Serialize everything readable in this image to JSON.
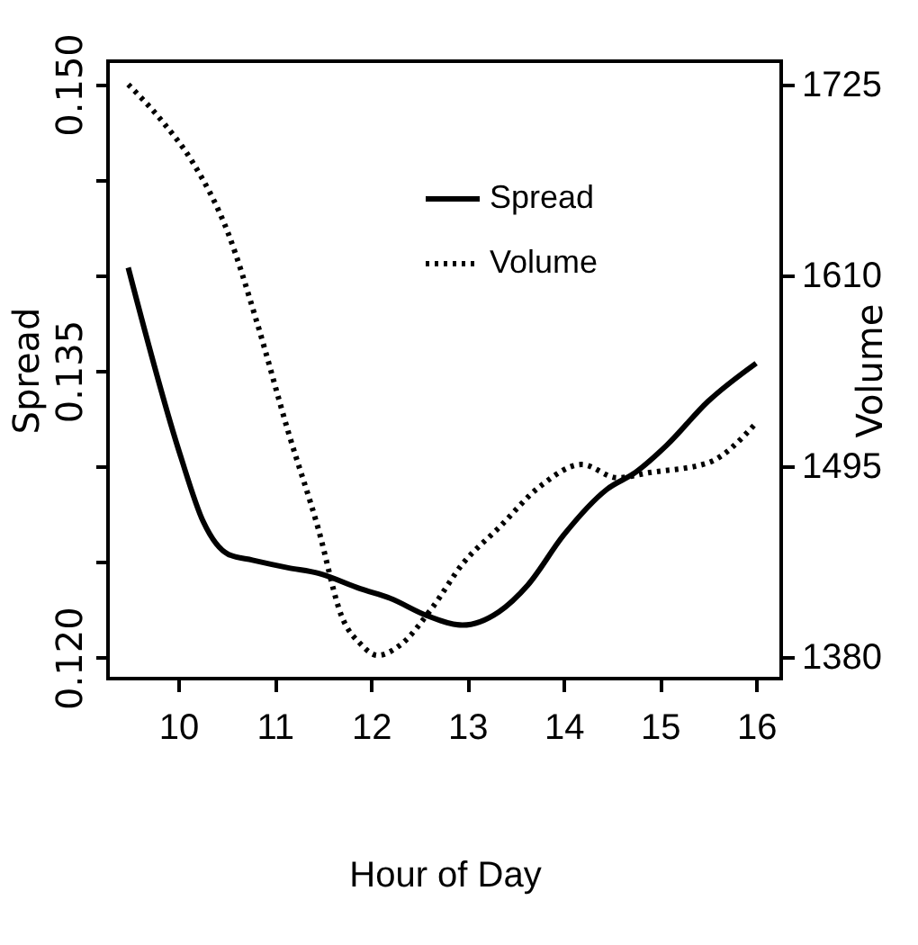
{
  "chart_data": {
    "type": "line",
    "xlabel": "Hour of Day",
    "ylabel": "Spread",
    "y2label": "Volume",
    "xlim": [
      9.27,
      16.26
    ],
    "xticks": [
      10,
      11,
      12,
      13,
      14,
      15,
      16
    ],
    "ylim": [
      0.1189,
      0.1512
    ],
    "yticks": [
      {
        "value": 0.12,
        "label": "0.120"
      },
      {
        "value": 0.125,
        "label": null
      },
      {
        "value": 0.13,
        "label": null
      },
      {
        "value": 0.135,
        "label": "0.135"
      },
      {
        "value": 0.14,
        "label": null
      },
      {
        "value": 0.145,
        "label": null
      },
      {
        "value": 0.15,
        "label": "0.150"
      }
    ],
    "y2lim": [
      1367,
      1739
    ],
    "y2ticks": [
      1380,
      1495,
      1610,
      1725
    ],
    "grid": false,
    "legend": "top right",
    "series": [
      {
        "name": "Spread",
        "color": "#000000",
        "line_style": "solid",
        "x": [
          9.48,
          10.02,
          10.26,
          10.52,
          10.77,
          11.14,
          11.46,
          11.89,
          12.2,
          12.58,
          12.95,
          13.33,
          13.63,
          14.0,
          14.45,
          14.75,
          15.07,
          15.5,
          16.0
        ],
        "values": [
          0.1404,
          0.1306,
          0.1271,
          0.1254,
          0.1251,
          0.1247,
          0.1244,
          0.1236,
          0.1231,
          0.1222,
          0.1217,
          0.1224,
          0.1238,
          0.1264,
          0.1288,
          0.1297,
          0.1311,
          0.1334,
          0.1354
        ]
      },
      {
        "name": "Volume",
        "color": "#000000",
        "line_style": "dotted",
        "axis": "y2",
        "x": [
          9.48,
          9.83,
          10.15,
          10.52,
          10.82,
          11.14,
          11.45,
          11.7,
          11.89,
          12.07,
          12.32,
          12.64,
          12.95,
          13.33,
          13.76,
          14.19,
          14.56,
          14.88,
          15.5,
          16.0
        ],
        "values": [
          1725,
          1703,
          1678,
          1635,
          1581,
          1516,
          1458,
          1404,
          1388,
          1381,
          1388,
          1410,
          1436,
          1458,
          1483,
          1496,
          1488,
          1491,
          1497,
          1521
        ]
      }
    ]
  }
}
